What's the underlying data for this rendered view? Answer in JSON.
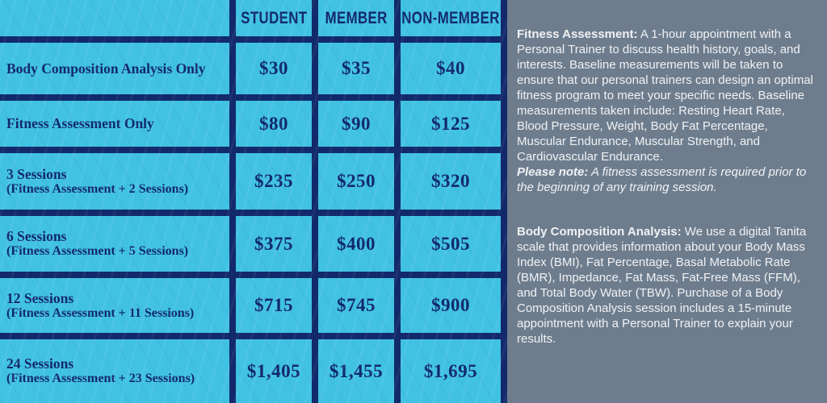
{
  "colors": {
    "table_background": "#41c2e3",
    "table_border": "#12296a",
    "table_text": "#12296a",
    "panel_background": "#6e7d8e",
    "panel_text": "#f0f2f4"
  },
  "table": {
    "columns": [
      "STUDENT",
      "MEMBER",
      "NON-MEMBER"
    ],
    "rows": [
      {
        "label": "Body Composition Analysis Only",
        "sublabel": "",
        "prices": [
          "$30",
          "$35",
          "$40"
        ]
      },
      {
        "label": "Fitness Assessment Only",
        "sublabel": "",
        "prices": [
          "$80",
          "$90",
          "$125"
        ]
      },
      {
        "label": "3 Sessions",
        "sublabel": "(Fitness Assessment + 2 Sessions)",
        "prices": [
          "$235",
          "$250",
          "$320"
        ]
      },
      {
        "label": "6 Sessions",
        "sublabel": "(Fitness Assessment + 5 Sessions)",
        "prices": [
          "$375",
          "$400",
          "$505"
        ]
      },
      {
        "label": "12 Sessions",
        "sublabel": "(Fitness Assessment + 11 Sessions)",
        "prices": [
          "$715",
          "$745",
          "$900"
        ]
      },
      {
        "label": "24 Sessions",
        "sublabel": "(Fitness Assessment + 23 Sessions)",
        "prices": [
          "$1,405",
          "$1,455",
          "$1,695"
        ]
      }
    ]
  },
  "info_panel": {
    "paragraphs": [
      {
        "lead": "Fitness Assessment:",
        "body": " A 1-hour appointment with a Personal Trainer to discuss health history, goals, and interests. Baseline measurements will be taken to ensure that our personal trainers can design an optimal fitness program to meet your specific needs. Baseline measurements taken include: Resting Heart Rate, Blood Pressure, Weight, Body Fat Percentage, Muscular Endurance, Muscular Strength, and Cardiovascular Endurance.",
        "note_lead": "Please note:",
        "note_body": " A fitness assessment is required prior to the beginning of any training session."
      },
      {
        "lead": "Body Composition Analysis:",
        "body": " We use a digital Tanita scale that provides information about your Body Mass Index (BMI), Fat Percentage, Basal Metabolic Rate (BMR), Impedance, Fat Mass, Fat-Free Mass (FFM), and Total Body Water (TBW). Purchase of a Body Composition Analysis session includes a 15-minute appointment with a Personal Trainer to explain your results."
      }
    ]
  }
}
